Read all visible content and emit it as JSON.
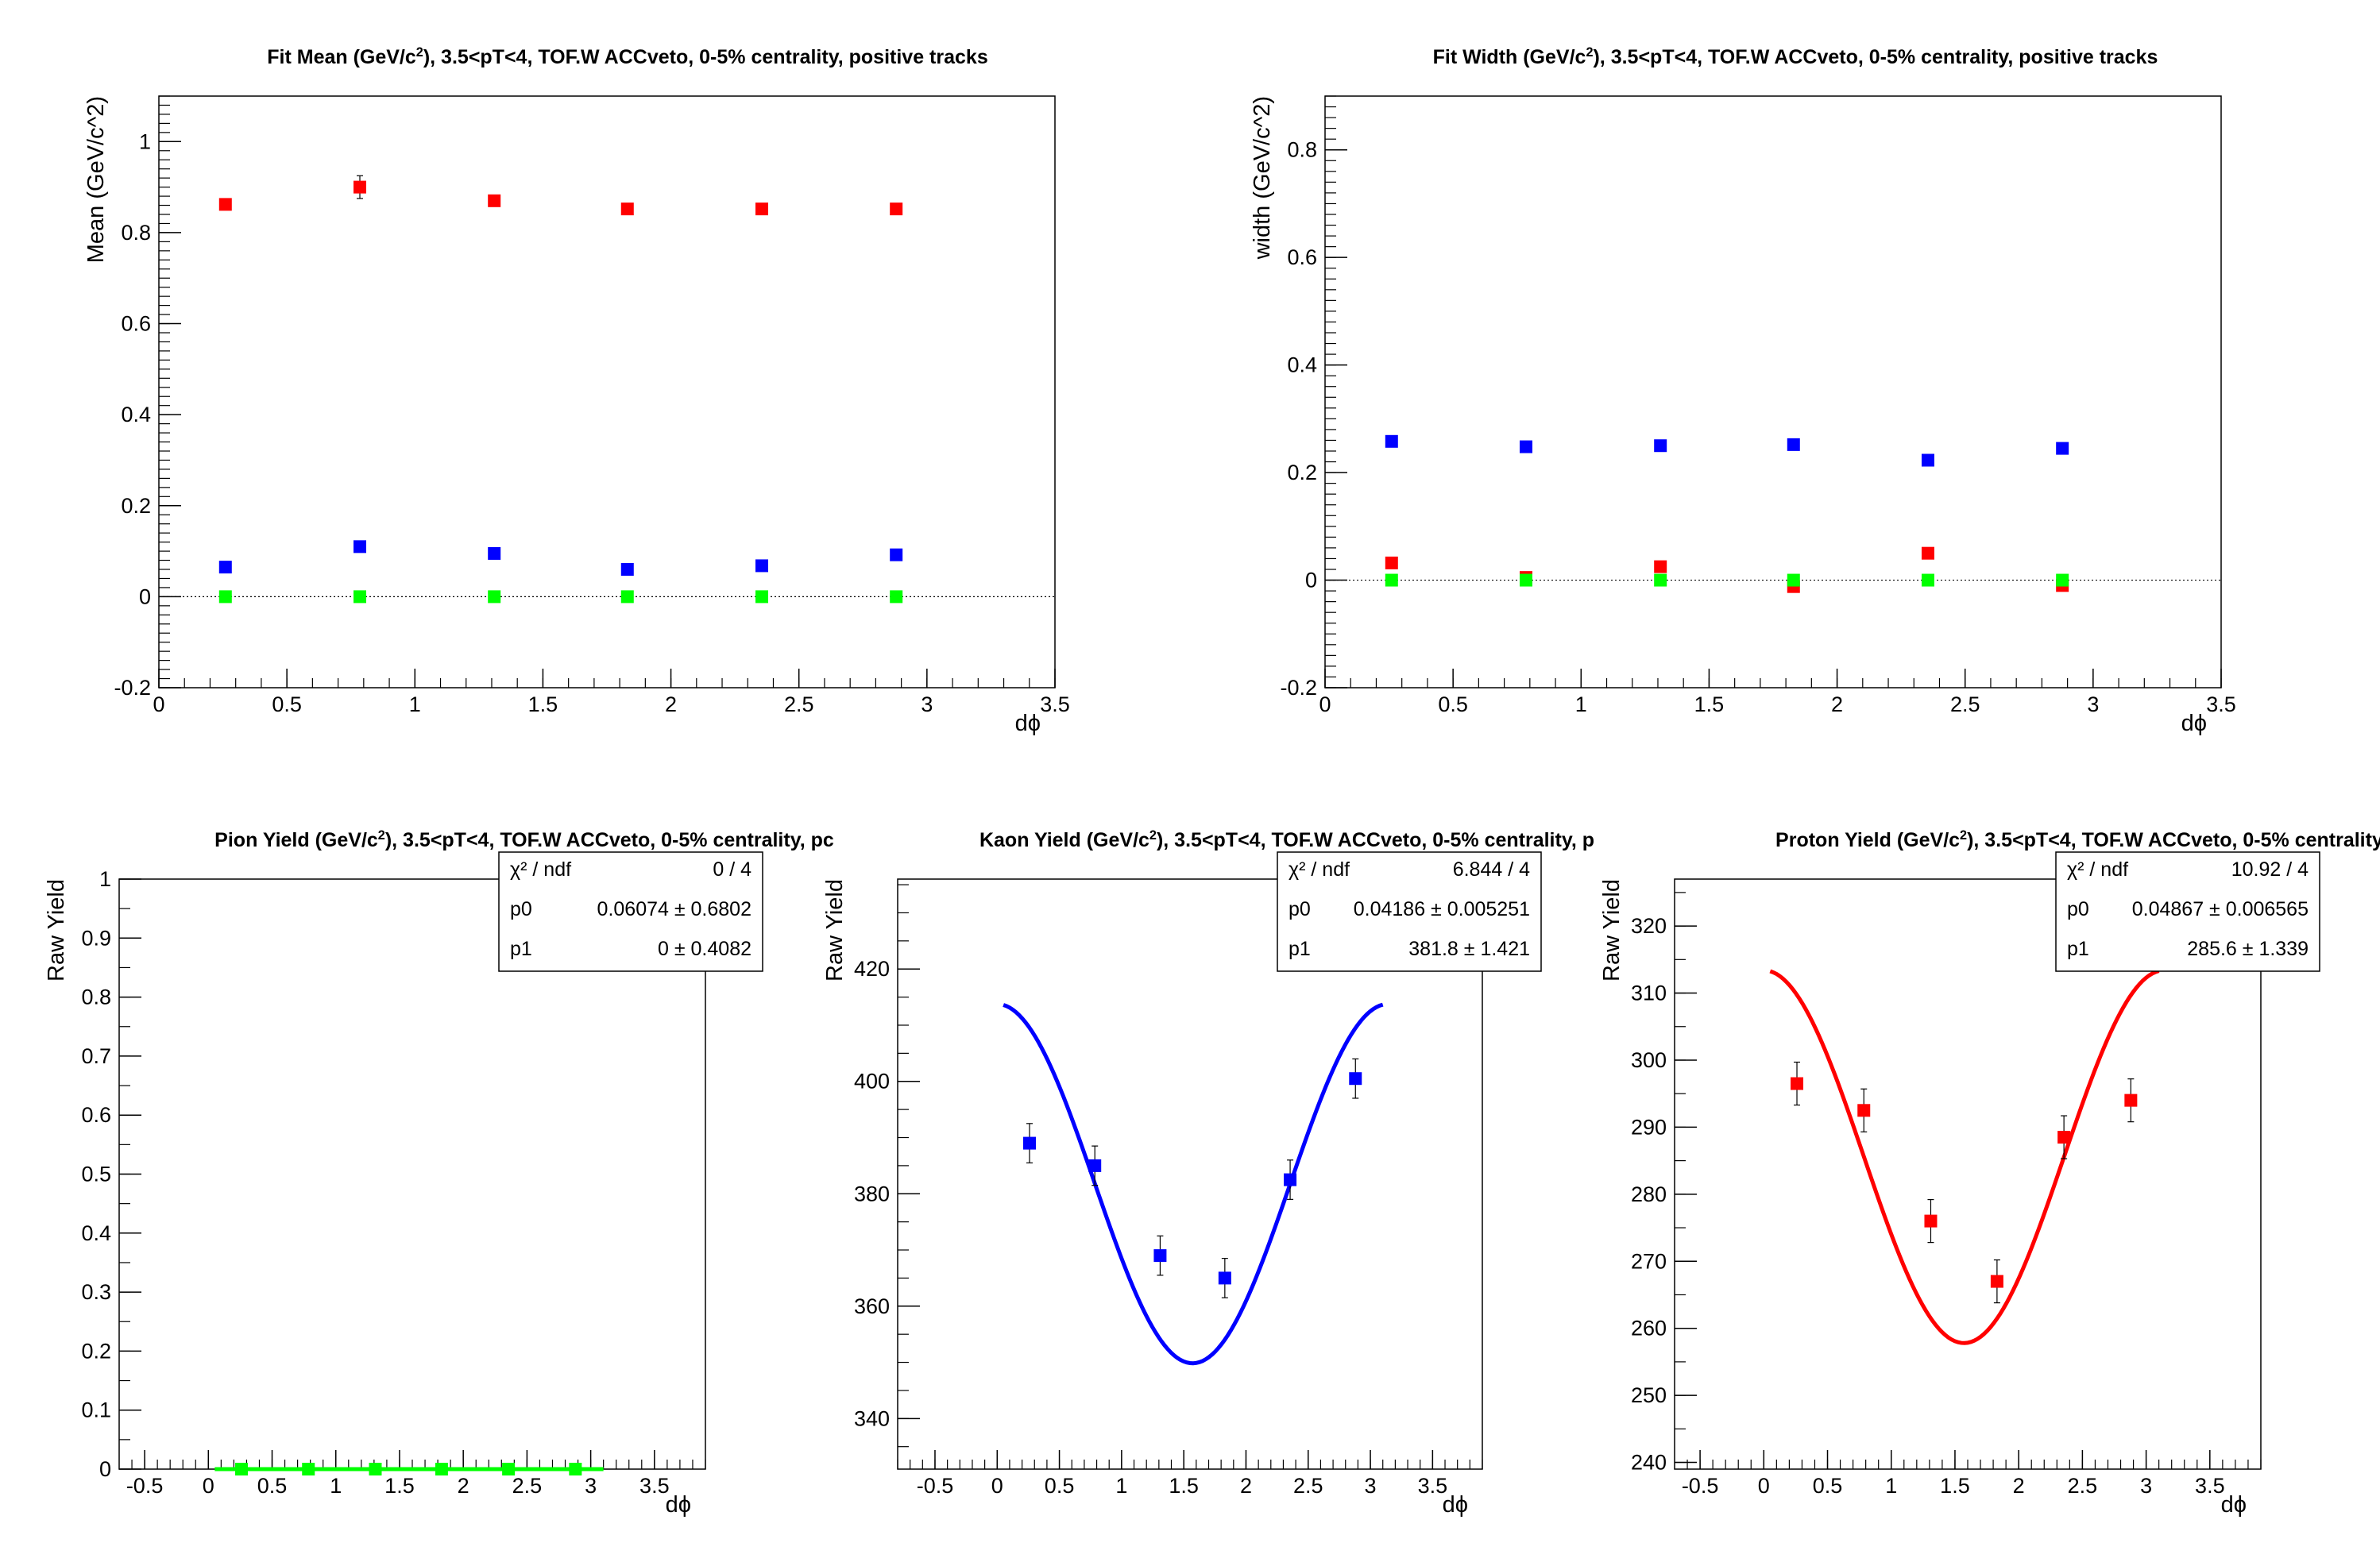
{
  "chart_data": [
    {
      "type": "scatter",
      "title_html": "Fit Mean (GeV/c<tspan baseline-shift=\"super\" font-size=\"65%\">2</tspan>), 3.5&lt;pT&lt;4, TOF.W ACCveto, 0-5% centrality, positive tracks",
      "title": "Fit Mean (GeV/c2), 3.5<pT<4, TOF.W ACCveto, 0-5% centrality, positive tracks",
      "xlabel": "dϕ",
      "ylabel": "Mean (GeV/c^2)",
      "xlim": [
        0,
        3.5
      ],
      "ylim": [
        -0.2,
        1.1
      ],
      "xticks": [
        "0",
        "0.5",
        "1",
        "1.5",
        "2",
        "2.5",
        "3",
        "3.5"
      ],
      "yticks": [
        "-0.2",
        "0",
        "0.2",
        "0.4",
        "0.6",
        "0.8",
        "1"
      ],
      "zero_line": true,
      "x": [
        0.26,
        0.785,
        1.31,
        1.83,
        2.355,
        2.88
      ],
      "series": [
        {
          "color": "#ff0000",
          "values": [
            0.862,
            0.9,
            0.87,
            0.852,
            0.852,
            0.852
          ],
          "errors": [
            0.008,
            0.025,
            0.008,
            0.006,
            0.006,
            0.006
          ]
        },
        {
          "color": "#0000ff",
          "values": [
            0.065,
            0.11,
            0.095,
            0.06,
            0.068,
            0.092
          ],
          "errors": [
            0.004,
            0.004,
            0.004,
            0.004,
            0.004,
            0.004
          ]
        },
        {
          "color": "#00ff00",
          "values": [
            0.0,
            0.0,
            0.0,
            0.0,
            0.0,
            0.0
          ],
          "errors": [
            0.002,
            0.002,
            0.002,
            0.002,
            0.002,
            0.002
          ]
        }
      ]
    },
    {
      "type": "scatter",
      "title_html": "Fit Width (GeV/c<tspan baseline-shift=\"super\" font-size=\"65%\">2</tspan>), 3.5&lt;pT&lt;4, TOF.W ACCveto, 0-5% centrality, positive tracks",
      "title": "Fit Width (GeV/c2), 3.5<pT<4, TOF.W ACCveto, 0-5% centrality, positive tracks",
      "xlabel": "dϕ",
      "ylabel": "width (GeV/c^2)",
      "xlim": [
        0,
        3.5
      ],
      "ylim": [
        -0.2,
        0.9
      ],
      "xticks": [
        "0",
        "0.5",
        "1",
        "1.5",
        "2",
        "2.5",
        "3",
        "3.5"
      ],
      "yticks": [
        "-0.2",
        "0",
        "0.2",
        "0.4",
        "0.6",
        "0.8"
      ],
      "zero_line": true,
      "x": [
        0.26,
        0.785,
        1.31,
        1.83,
        2.355,
        2.88
      ],
      "series": [
        {
          "color": "#0000ff",
          "values": [
            0.258,
            0.248,
            0.25,
            0.252,
            0.223,
            0.245
          ],
          "errors": [
            0.005,
            0.005,
            0.005,
            0.005,
            0.005,
            0.005
          ]
        },
        {
          "color": "#ff0000",
          "values": [
            0.032,
            0.005,
            0.025,
            -0.012,
            0.05,
            -0.01
          ],
          "errors": [
            0.004,
            0.004,
            0.004,
            0.004,
            0.004,
            0.004
          ]
        },
        {
          "color": "#00ff00",
          "values": [
            0.0,
            0.0,
            0.0,
            0.0,
            0.0,
            0.0
          ],
          "errors": [
            0.002,
            0.002,
            0.002,
            0.002,
            0.002,
            0.002
          ]
        }
      ]
    },
    {
      "type": "scatter",
      "title_html": "Pion Yield (GeV/c<tspan baseline-shift=\"super\" font-size=\"65%\">2</tspan>), 3.5&lt;pT&lt;4, TOF.W ACCveto, 0-5% centrality, pc",
      "title": "Pion Yield (GeV/c2), 3.5<pT<4, TOF.W ACCveto, 0-5% centrality, pc",
      "xlabel": "dϕ",
      "ylabel": "Raw Yield",
      "xlim": [
        -0.7,
        3.9
      ],
      "ylim": [
        0,
        1
      ],
      "xticks": [
        "-0.5",
        "0",
        "0.5",
        "1",
        "1.5",
        "2",
        "2.5",
        "3",
        "3.5"
      ],
      "yticks": [
        "0",
        "0.1",
        "0.2",
        "0.3",
        "0.4",
        "0.5",
        "0.6",
        "0.7",
        "0.8",
        "0.9",
        "1"
      ],
      "x": [
        0.26,
        0.785,
        1.31,
        1.83,
        2.355,
        2.88
      ],
      "series": [
        {
          "color": "#00ff00",
          "values": [
            0,
            0,
            0,
            0,
            0,
            0
          ],
          "errors": [
            0,
            0,
            0,
            0,
            0,
            0
          ]
        }
      ],
      "fit": {
        "color": "#00ff00",
        "p0": 0.06074,
        "p1": 0,
        "xrange": [
          0.05,
          3.1
        ]
      },
      "stats": [
        {
          "label": "χ² / ndf",
          "value": "0 / 4"
        },
        {
          "label": "p0",
          "value": "0.06074 ± 0.6802"
        },
        {
          "label": "p1",
          "value": "0 ± 0.4082"
        }
      ]
    },
    {
      "type": "scatter",
      "title_html": "Kaon Yield (GeV/c<tspan baseline-shift=\"super\" font-size=\"65%\">2</tspan>), 3.5&lt;pT&lt;4, TOF.W ACCveto, 0-5% centrality, p",
      "title": "Kaon Yield (GeV/c2), 3.5<pT<4, TOF.W ACCveto, 0-5% centrality, p",
      "xlabel": "dϕ",
      "ylabel": "Raw Yield",
      "xlim": [
        -0.8,
        3.9
      ],
      "ylim": [
        331,
        436
      ],
      "xticks": [
        "-0.5",
        "0",
        "0.5",
        "1",
        "1.5",
        "2",
        "2.5",
        "3",
        "3.5"
      ],
      "yticks": [
        "340",
        "360",
        "380",
        "400",
        "420"
      ],
      "x": [
        0.26,
        0.785,
        1.31,
        1.83,
        2.355,
        2.88
      ],
      "series": [
        {
          "color": "#0000ff",
          "values": [
            389,
            385,
            369,
            365,
            382.5,
            400.5
          ],
          "errors": [
            3.5,
            3.5,
            3.5,
            3.5,
            3.5,
            3.5
          ]
        }
      ],
      "fit": {
        "color": "#0000ff",
        "p0": 0.04186,
        "p1": 381.8,
        "xrange": [
          0.05,
          3.1
        ]
      },
      "stats": [
        {
          "label": "χ² / ndf",
          "value": "6.844 / 4"
        },
        {
          "label": "p0",
          "value": "0.04186 ± 0.005251"
        },
        {
          "label": "p1",
          "value": "381.8 ± 1.421"
        }
      ]
    },
    {
      "type": "scatter",
      "title_html": "Proton Yield (GeV/c<tspan baseline-shift=\"super\" font-size=\"65%\">2</tspan>), 3.5&lt;pT&lt;4, TOF.W ACCveto, 0-5% centrality,",
      "title": "Proton Yield (GeV/c2), 3.5<pT<4, TOF.W ACCveto, 0-5% centrality,",
      "xlabel": "dϕ",
      "ylabel": "Raw Yield",
      "xlim": [
        -0.7,
        3.9
      ],
      "ylim": [
        239,
        327
      ],
      "xticks": [
        "-0.5",
        "0",
        "0.5",
        "1",
        "1.5",
        "2",
        "2.5",
        "3",
        "3.5"
      ],
      "yticks": [
        "240",
        "250",
        "260",
        "270",
        "280",
        "290",
        "300",
        "310",
        "320"
      ],
      "x": [
        0.26,
        0.785,
        1.31,
        1.83,
        2.355,
        2.88
      ],
      "series": [
        {
          "color": "#ff0000",
          "values": [
            296.5,
            292.5,
            276,
            267,
            288.5,
            294
          ],
          "errors": [
            3.2,
            3.2,
            3.2,
            3.2,
            3.2,
            3.2
          ]
        }
      ],
      "fit": {
        "color": "#ff0000",
        "p0": 0.04867,
        "p1": 285.6,
        "xrange": [
          0.05,
          3.1
        ]
      },
      "stats": [
        {
          "label": "χ² / ndf",
          "value": "10.92 / 4"
        },
        {
          "label": "p0",
          "value": "0.04867 ± 0.006565"
        },
        {
          "label": "p1",
          "value": "285.6 ± 1.339"
        }
      ]
    }
  ]
}
